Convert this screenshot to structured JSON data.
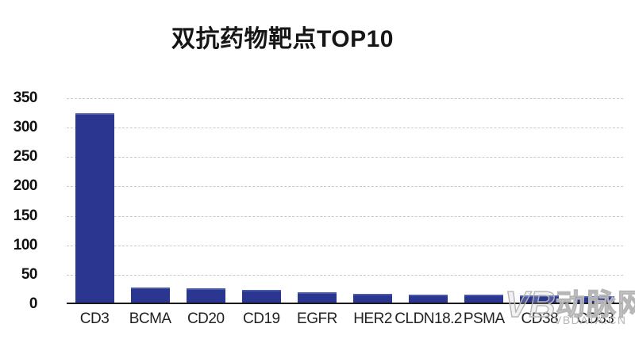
{
  "page": {
    "background": "#ffffff"
  },
  "chart_data": {
    "type": "bar",
    "title": "双抗药物靶点TOP10",
    "categories": [
      "CD3",
      "BCMA",
      "CD20",
      "CD19",
      "EGFR",
      "HER2",
      "CLDN18.2",
      "PSMA",
      "CD38",
      "CD33"
    ],
    "values": [
      322,
      26,
      24,
      22,
      18,
      15,
      14,
      13,
      12,
      11
    ],
    "xlabel": "",
    "ylabel": "",
    "ylim": [
      0,
      350
    ],
    "yticks": [
      0,
      50,
      100,
      150,
      200,
      250,
      300,
      350
    ],
    "grid": "horizontal-dashed",
    "legend": "none",
    "bar_color": "#2B3690",
    "bar_top_highlight": "#4B59AB",
    "axis_color": "#1a1a1a",
    "gridline_color": "#c9c9c9",
    "tick_label_color": "#111111"
  },
  "watermark": {
    "logo": "VB",
    "brand": "动脉网",
    "domain": "VBDATA.CN",
    "color": "#b6b6b6"
  }
}
